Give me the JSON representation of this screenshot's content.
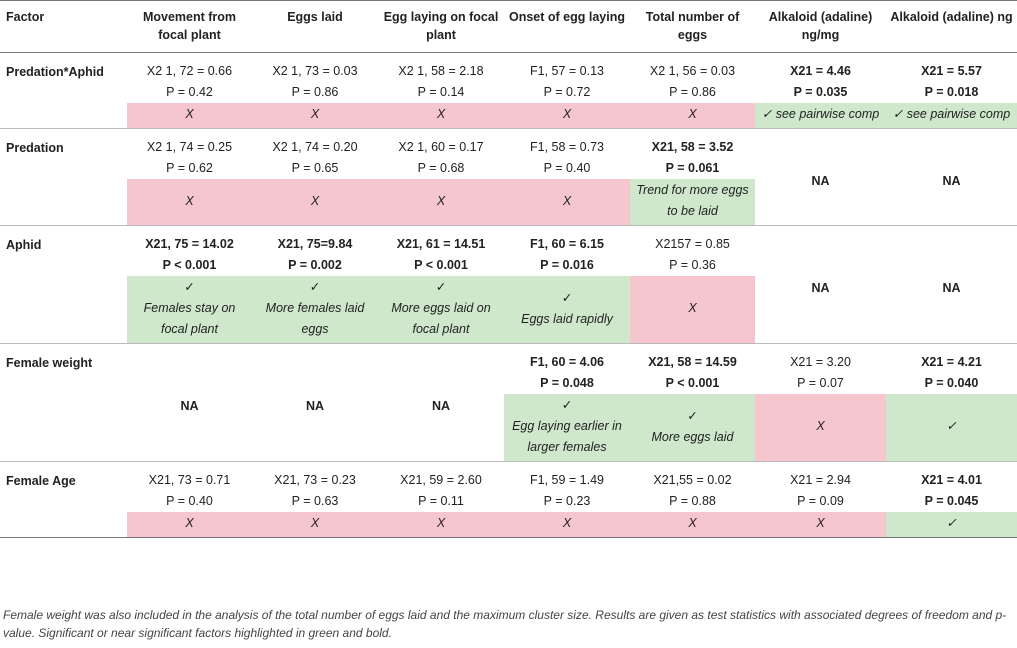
{
  "headers": [
    "Factor",
    "Movement from focal plant",
    "Eggs laid",
    "Egg laying on focal plant",
    "Onset of egg laying",
    "Total number of eggs",
    "Alkaloid (adaline) ng/mg",
    "Alkaloid (adaline) ng"
  ],
  "rows": [
    {
      "factor": "Predation*Aphid",
      "stats": [
        [
          "X2 1, 72 = 0.66",
          "P = 0.42"
        ],
        [
          "X2 1, 73 = 0.03",
          "P = 0.86"
        ],
        [
          "X2 1, 58 = 2.18",
          "P = 0.14"
        ],
        [
          "F1, 57 = 0.13",
          "P = 0.72"
        ],
        [
          "X2 1, 56 = 0.03",
          "P = 0.86"
        ],
        [
          "X21 = 4.46",
          "P = 0.035"
        ],
        [
          "X21 = 5.57",
          "P = 0.018"
        ]
      ],
      "results": [
        "X",
        "X",
        "X",
        "X",
        "X",
        "✓ see pairwise comp",
        "✓ see pairwise comp"
      ]
    },
    {
      "factor": "Predation",
      "stats": [
        [
          "X2 1, 74 = 0.25",
          "P = 0.62"
        ],
        [
          "X2 1, 74 = 0.20",
          "P = 0.65"
        ],
        [
          "X2 1, 60 = 0.17",
          "P = 0.68"
        ],
        [
          "F1, 58 = 0.73",
          "P = 0.40"
        ],
        [
          "X21, 58 = 3.52",
          "P = 0.061"
        ],
        [
          "NA"
        ],
        [
          "NA"
        ]
      ],
      "results": [
        "X",
        "X",
        "X",
        "X",
        "Trend for more eggs to be laid"
      ]
    },
    {
      "factor": "Aphid",
      "stats": [
        [
          "X21, 75 = 14.02",
          "P < 0.001"
        ],
        [
          "X21, 75=9.84",
          "P = 0.002"
        ],
        [
          "X21, 61 = 14.51",
          "P < 0.001"
        ],
        [
          "F1, 60 = 6.15",
          "P = 0.016"
        ],
        [
          "X2157 = 0.85",
          "P = 0.36"
        ],
        [
          "NA"
        ],
        [
          "NA"
        ]
      ],
      "results": [
        "✓",
        "Females stay on focal plant",
        "✓",
        "More females laid eggs",
        "✓",
        "More eggs laid on focal plant",
        "✓",
        "Eggs laid rapidly",
        "X"
      ]
    },
    {
      "factor": "Female weight",
      "stats": [
        [
          "NA"
        ],
        [
          "NA"
        ],
        [
          "NA"
        ],
        [
          "F1, 60 = 4.06",
          "P = 0.048"
        ],
        [
          "X21, 58 = 14.59",
          "P < 0.001"
        ],
        [
          "X21 = 3.20",
          "P = 0.07"
        ],
        [
          "X21 = 4.21",
          "P = 0.040"
        ]
      ],
      "results": [
        "✓",
        "Egg laying earlier in larger females",
        "✓",
        "More eggs laid",
        "X",
        "✓"
      ]
    },
    {
      "factor": "Female Age",
      "stats": [
        [
          "X21, 73 = 0.71",
          "P = 0.40"
        ],
        [
          "X21, 73 = 0.23",
          "P = 0.63"
        ],
        [
          "X21, 59 = 2.60",
          "P = 0.11"
        ],
        [
          "F1, 59 = 1.49",
          "P = 0.23"
        ],
        [
          "X21,55 = 0.02",
          "P = 0.88"
        ],
        [
          "X21 = 2.94",
          "P = 0.09"
        ],
        [
          "X21 = 4.01",
          "P = 0.045"
        ]
      ],
      "results": [
        "X",
        "X",
        "X",
        "X",
        "X",
        "X",
        "✓"
      ]
    }
  ],
  "footnote": "Female weight was also included in the analysis of the total number of eggs laid and the maximum cluster size. Results are given as test statistics with associated degrees of freedom and p-value. Significant or near significant factors highlighted in green and bold.",
  "colors": {
    "red": "#f6c6cf",
    "green": "#cfe8cc"
  }
}
